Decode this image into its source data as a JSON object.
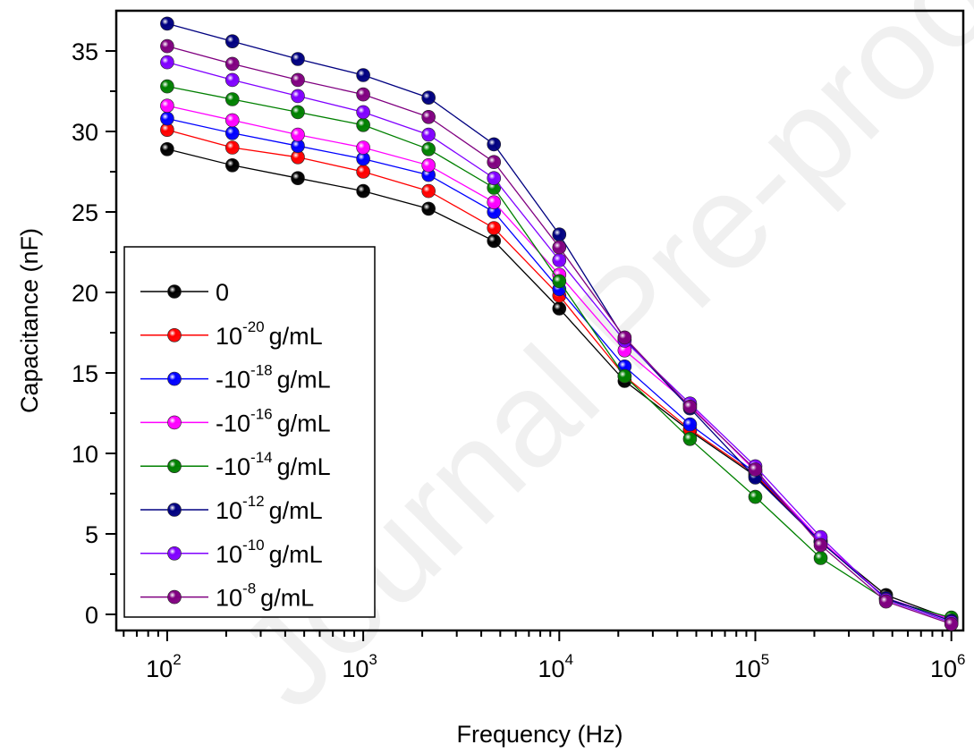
{
  "watermark": "Journal Pre-proof",
  "chart_data": {
    "type": "line",
    "xscale": "log",
    "xlabel": "Frequency (Hz)",
    "ylabel": "Capacitance (nF)",
    "xlim": [
      55,
      1150000
    ],
    "ylim": [
      -1,
      37.5
    ],
    "xticks": [
      {
        "base": "10",
        "exp": "2"
      },
      {
        "base": "10",
        "exp": "3"
      },
      {
        "base": "10",
        "exp": "4"
      },
      {
        "base": "10",
        "exp": "5"
      },
      {
        "base": "10",
        "exp": "6"
      }
    ],
    "yticks": [
      "0",
      "5",
      "10",
      "15",
      "20",
      "25",
      "30",
      "35"
    ],
    "legend_position": "bottom-left",
    "x": [
      100,
      215,
      464,
      1000,
      2154,
      4642,
      10000,
      21544,
      46416,
      100000,
      215443,
      464159,
      1000000
    ],
    "series": [
      {
        "name": "0",
        "prefix": "",
        "base": "10",
        "exp": "",
        "suffix": "",
        "color": "#000000",
        "values": [
          28.9,
          27.9,
          27.1,
          26.3,
          25.2,
          23.2,
          19.0,
          14.5,
          11.4,
          8.6,
          4.5,
          1.2,
          -0.3
        ]
      },
      {
        "name": "10^-20 g/mL",
        "prefix": "",
        "base": "10",
        "exp": "-20",
        "suffix": "g/mL",
        "color": "#ff0000",
        "values": [
          30.1,
          29.0,
          28.4,
          27.5,
          26.3,
          24.0,
          19.8,
          14.8,
          11.5,
          8.7,
          4.5,
          1.0,
          -0.3
        ]
      },
      {
        "name": "-10^-18 g/mL",
        "prefix": "-",
        "base": "10",
        "exp": "-18",
        "suffix": "g/mL",
        "color": "#0000ff",
        "values": [
          30.8,
          29.9,
          29.1,
          28.3,
          27.3,
          25.0,
          20.2,
          15.4,
          11.8,
          8.8,
          4.5,
          1.0,
          -0.3
        ]
      },
      {
        "name": "-10^-16 g/mL",
        "prefix": "-",
        "base": "10",
        "exp": "-16",
        "suffix": "g/mL",
        "color": "#ff00ff",
        "values": [
          31.6,
          30.7,
          29.8,
          29.0,
          27.9,
          25.6,
          21.1,
          16.4,
          13.0,
          8.9,
          4.6,
          1.0,
          -0.3
        ]
      },
      {
        "name": "-10^-14 g/mL",
        "prefix": "-",
        "base": "10",
        "exp": "-14",
        "suffix": "g/mL",
        "color": "#008000",
        "values": [
          32.8,
          32.0,
          31.2,
          30.4,
          28.9,
          26.5,
          20.7,
          14.8,
          10.9,
          7.3,
          3.5,
          0.9,
          -0.2
        ]
      },
      {
        "name": "10^-12 g/mL",
        "prefix": "",
        "base": "10",
        "exp": "-12",
        "suffix": "g/mL",
        "color": "#000080",
        "values": [
          36.7,
          35.6,
          34.5,
          33.5,
          32.1,
          29.2,
          23.6,
          17.1,
          12.8,
          8.5,
          4.5,
          1.0,
          -0.4
        ]
      },
      {
        "name": "10^-10 g/mL",
        "prefix": "",
        "base": "10",
        "exp": "-10",
        "suffix": "g/mL",
        "color": "#8000ff",
        "values": [
          34.3,
          33.2,
          32.2,
          31.2,
          29.8,
          27.1,
          22.0,
          17.0,
          13.1,
          9.2,
          4.8,
          0.9,
          -0.5
        ]
      },
      {
        "name": "10^-8 g/mL",
        "prefix": "",
        "base": "10",
        "exp": "-8",
        "suffix": "g/mL",
        "color": "#800080",
        "values": [
          35.3,
          34.2,
          33.2,
          32.3,
          30.9,
          28.1,
          22.8,
          17.2,
          12.9,
          9.0,
          4.3,
          0.8,
          -0.6
        ]
      }
    ]
  }
}
